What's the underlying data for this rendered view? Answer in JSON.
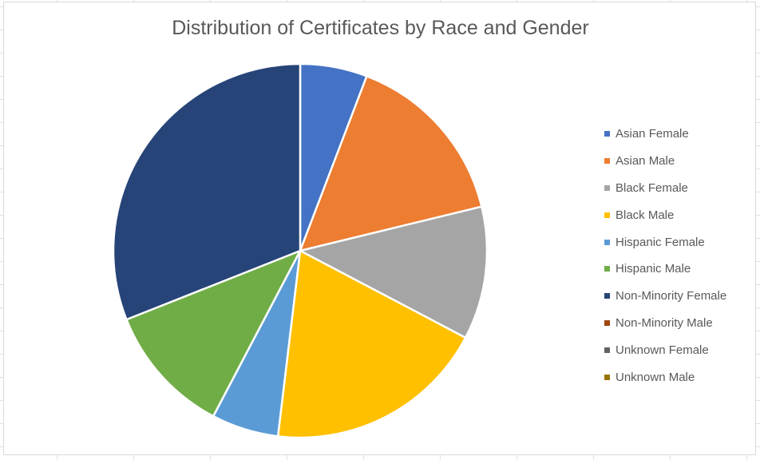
{
  "chart_data": {
    "type": "pie",
    "title": "Distribution of Certificates by Race and Gender",
    "categories": [
      "Asian Female",
      "Asian Male",
      "Black Female",
      "Black Male",
      "Hispanic Female",
      "Hispanic Male",
      "Non-Minority Female",
      "Non-Minority Male",
      "Unknown Female",
      "Unknown Male"
    ],
    "values": [
      5.8,
      15.4,
      11.5,
      19.2,
      5.8,
      11.3,
      31.0,
      0,
      0,
      0
    ],
    "colors": [
      "#4472c4",
      "#ed7d31",
      "#a5a5a5",
      "#ffc000",
      "#5b9bd5",
      "#70ad47",
      "#264478",
      "#9e480e",
      "#636363",
      "#997300"
    ],
    "legend_position": "right",
    "start_angle_deg": 0,
    "direction": "clockwise"
  }
}
